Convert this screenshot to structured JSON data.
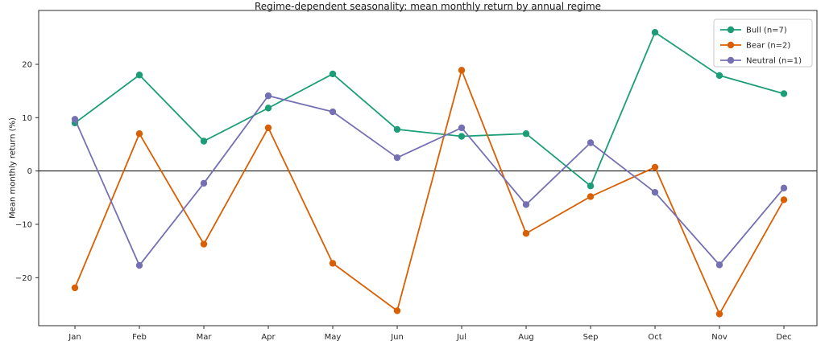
{
  "chart_data": {
    "type": "line",
    "title": "Regime-dependent seasonality: mean monthly return by annual regime",
    "xlabel": "",
    "ylabel": "Mean monthly return (%)",
    "categories": [
      "Jan",
      "Feb",
      "Mar",
      "Apr",
      "May",
      "Jun",
      "Jul",
      "Aug",
      "Sep",
      "Oct",
      "Nov",
      "Dec"
    ],
    "series": [
      {
        "name": "Bull (n=7)",
        "color": "#1b9e77",
        "values": [
          9.0,
          18.0,
          5.6,
          11.8,
          18.2,
          7.8,
          6.5,
          7.0,
          -2.8,
          26.0,
          17.9,
          14.5
        ]
      },
      {
        "name": "Bear (n=2)",
        "color": "#d95f02",
        "values": [
          -21.9,
          7.0,
          -13.7,
          8.1,
          -17.3,
          -26.2,
          18.9,
          -11.7,
          -4.8,
          0.7,
          -26.8,
          -5.4
        ]
      },
      {
        "name": "Neutral (n=1)",
        "color": "#7570b3",
        "values": [
          9.7,
          -17.7,
          -2.3,
          14.1,
          11.1,
          2.5,
          8.1,
          -6.3,
          5.3,
          -4.0,
          -17.6,
          -3.2
        ]
      }
    ],
    "yticks": {
      "values": [
        -20,
        -10,
        0,
        10,
        20
      ],
      "labels": [
        "−20",
        "−10",
        "0",
        "10",
        "20"
      ]
    },
    "ylim": [
      -29.0,
      30.1
    ],
    "zero_line": true,
    "grid": false,
    "legend_position": "upper right",
    "axis_color": "#2b2b2b",
    "tick_label_color": "#262626",
    "legend_border_color": "#c9c9c9"
  }
}
